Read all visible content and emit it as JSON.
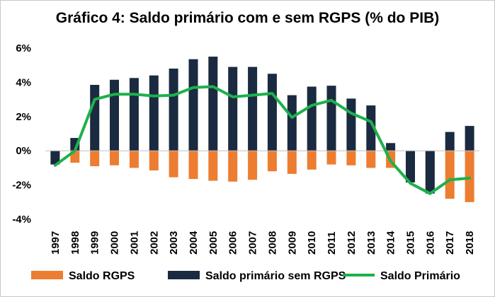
{
  "chart_data": {
    "type": "bar",
    "title": "Gráfico 4: Saldo primário com e sem RGPS (% do PIB)",
    "xlabel": "",
    "ylabel": "",
    "categories": [
      "1997",
      "1998",
      "1999",
      "2000",
      "2001",
      "2002",
      "2003",
      "2004",
      "2005",
      "2006",
      "2007",
      "2008",
      "2009",
      "2010",
      "2011",
      "2012",
      "2013",
      "2014",
      "2015",
      "2016",
      "2017",
      "2018"
    ],
    "ylim": [
      -4,
      6
    ],
    "yticks": [
      -4,
      -2,
      0,
      2,
      4,
      6
    ],
    "ytick_labels": [
      "-4%",
      "-2%",
      "0%",
      "2%",
      "4%",
      "6%"
    ],
    "grid": false,
    "legend_position": "bottom",
    "series": [
      {
        "name": "Saldo RGPS",
        "kind": "bar",
        "color": "#ED7D31",
        "values": [
          -0.3,
          -0.7,
          -0.9,
          -0.85,
          -1.0,
          -1.15,
          -1.55,
          -1.65,
          -1.75,
          -1.8,
          -1.7,
          -1.2,
          -1.35,
          -1.1,
          -0.8,
          -0.85,
          -1.0,
          -1.0,
          -1.45,
          -2.4,
          -2.8,
          -3.0
        ]
      },
      {
        "name": "Saldo primário sem RGPS",
        "kind": "bar",
        "color": "#1A2A40",
        "values": [
          -0.8,
          0.75,
          3.85,
          4.15,
          4.25,
          4.4,
          4.8,
          5.35,
          5.5,
          4.9,
          4.9,
          4.5,
          3.25,
          3.75,
          3.8,
          3.05,
          2.65,
          0.45,
          -1.85,
          -2.5,
          1.1,
          1.45
        ]
      },
      {
        "name": "Saldo Primário",
        "kind": "line",
        "color": "#1DB14B",
        "values": [
          -0.85,
          0.0,
          3.0,
          3.3,
          3.3,
          3.2,
          3.25,
          3.7,
          3.75,
          3.15,
          3.25,
          3.35,
          1.95,
          2.65,
          2.95,
          2.2,
          1.7,
          -0.6,
          -1.9,
          -2.5,
          -1.7,
          -1.6
        ]
      }
    ]
  }
}
